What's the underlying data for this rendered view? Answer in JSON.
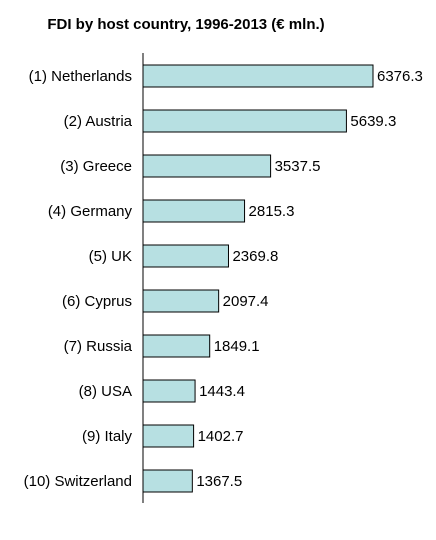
{
  "chart_data": {
    "type": "bar",
    "orientation": "horizontal",
    "title": "FDI by host country, 1996-2013 (€ mln.)",
    "categories": [
      "(1) Netherlands",
      "(2) Austria",
      "(3) Greece",
      "(4) Germany",
      "(5) UK",
      "(6) Cyprus",
      "(7) Russia",
      "(8) USA",
      "(9) Italy",
      "(10) Switzerland"
    ],
    "values": [
      6376.3,
      5639.3,
      3537.5,
      2815.3,
      2369.8,
      2097.4,
      1849.1,
      1443.4,
      1402.7,
      1367.5
    ],
    "value_labels": [
      "6376.3",
      "5639.3",
      "3537.5",
      "2815.3",
      "2369.8",
      "2097.4",
      "1849.1",
      "1443.4",
      "1402.7",
      "1367.5"
    ],
    "xlabel": "",
    "ylabel": "",
    "xlim": [
      0,
      6376.3
    ],
    "grid": false,
    "legend": "none",
    "colors": {
      "bar_fill": "#b7e0e2",
      "bar_stroke": "#000000",
      "axis": "#000000",
      "text": "#000000"
    }
  }
}
